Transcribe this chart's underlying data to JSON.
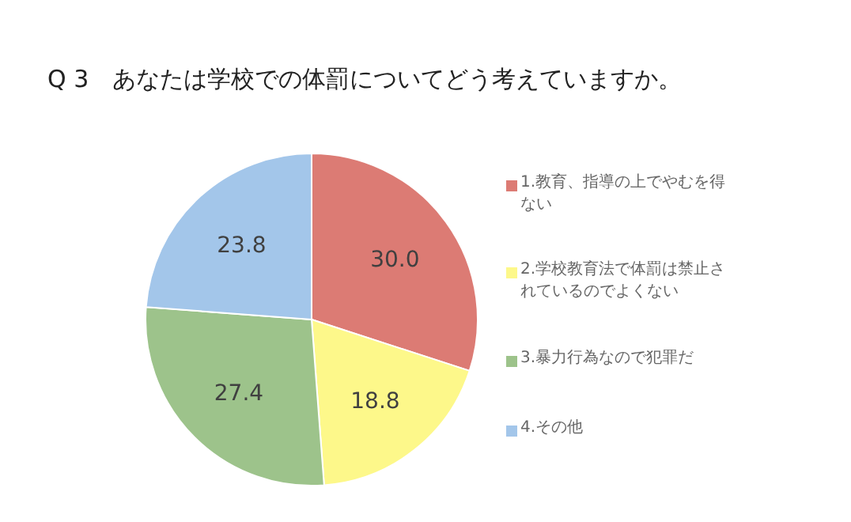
{
  "chart_data": {
    "type": "pie",
    "title": "Q 3　あなたは学校での体罰についてどう考えていますか。",
    "categories": [
      "1.教育、指導の上でやむを得ない",
      "2.学校教育法で体罰は禁止されているのでよくない",
      "3.暴力行為なので犯罪だ",
      "4.その他"
    ],
    "values": [
      30.0,
      18.8,
      27.4,
      23.8
    ],
    "colors": [
      "#dc7b74",
      "#fdf88a",
      "#9dc38b",
      "#a3c6ea"
    ],
    "value_labels": [
      "30.0",
      "18.8",
      "27.4",
      "23.8"
    ],
    "legend": "right"
  }
}
